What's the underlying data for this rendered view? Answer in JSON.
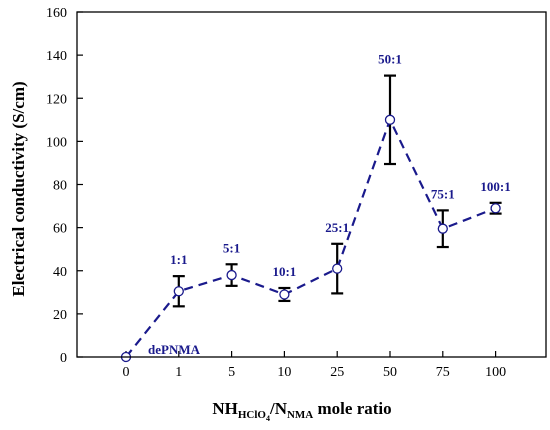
{
  "chart_data": {
    "type": "line",
    "categories": [
      "0",
      "1",
      "5",
      "10",
      "25",
      "50",
      "75",
      "100"
    ],
    "values": [
      0,
      30.5,
      38,
      29,
      41,
      110,
      59.5,
      69
    ],
    "error": [
      0,
      7,
      5,
      3,
      11.5,
      20.5,
      8.5,
      2.5
    ],
    "point_labels": [
      "dePNMA",
      "1:1",
      "5:1",
      "10:1",
      "25:1",
      "50:1",
      "75:1",
      "100:1"
    ],
    "ylabel": "Electrical conductivity (S/cm)",
    "xlabel_parts": {
      "nh": "NH",
      "hclo": "HClO",
      "four": "4",
      "slash": "/N",
      "nma": "NMA",
      "tail": " mole ratio"
    },
    "ylim": [
      0,
      160
    ],
    "yticks": [
      0,
      20,
      40,
      60,
      80,
      100,
      120,
      140,
      160
    ],
    "colors": {
      "series": "#1a1a8c",
      "error": "#000000",
      "axes": "#000000"
    },
    "grid": false,
    "legend": "none"
  }
}
